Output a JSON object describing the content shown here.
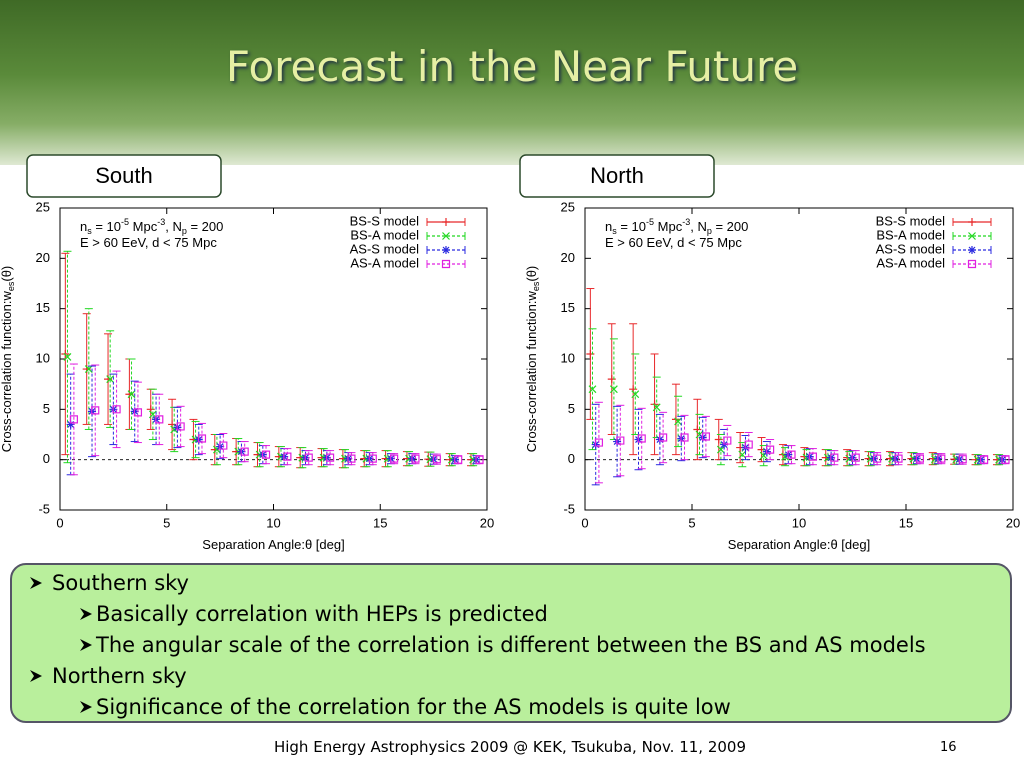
{
  "title": "Forecast in the Near Future",
  "footer": "High Energy Astrophysics 2009 @ KEK, Tsukuba, Nov. 11, 2009",
  "page_number": "16",
  "bullets": [
    {
      "text": "Southern sky",
      "level": 0
    },
    {
      "text": "Basically correlation with HEPs is predicted",
      "level": 1
    },
    {
      "text": "The angular scale of the correlation is different between the BS and AS models",
      "level": 1
    },
    {
      "text": "Northern sky",
      "level": 0
    },
    {
      "text": "Significance of the correlation for the AS models is quite low",
      "level": 1
    }
  ],
  "chart_data": [
    {
      "type": "errorbar",
      "title": "South",
      "xlabel": [
        {
          "text": "Separation Angle:"
        },
        {
          "text": "θ"
        },
        {
          "text": " [deg]"
        }
      ],
      "ylabel": [
        {
          "text": "Cross-correlation function:w"
        },
        {
          "sub": "es"
        },
        {
          "text": "(θ)"
        }
      ],
      "annotation": [
        [
          {
            "text": "n"
          },
          {
            "sub": "s"
          },
          {
            "text": " = 10"
          },
          {
            "sup": "-5"
          },
          {
            "text": " Mpc"
          },
          {
            "sup": "-3"
          },
          {
            "text": ", N"
          },
          {
            "sub": "p"
          },
          {
            "text": " = 200"
          }
        ],
        [
          {
            "text": "E > 60 EeV, d < 75 Mpc"
          }
        ]
      ],
      "xlim": [
        0,
        20
      ],
      "ylim": [
        -5,
        25
      ],
      "xticks": [
        0,
        5,
        10,
        15,
        20
      ],
      "yticks": [
        -5,
        0,
        5,
        10,
        15,
        20,
        25
      ],
      "legend": "upper right",
      "series": [
        {
          "name": "BS-S model",
          "color": "#e8282a",
          "marker": "plus",
          "dashed": false,
          "x": [
            0.25,
            1.25,
            2.25,
            3.25,
            4.25,
            5.25,
            6.25,
            7.25,
            8.25,
            9.25,
            10.25,
            11.25,
            12.25,
            13.25,
            14.25,
            15.25,
            16.25,
            17.25,
            18.25,
            19.25
          ],
          "values": [
            10.5,
            9,
            8,
            6.5,
            5,
            3.5,
            2,
            1,
            0.8,
            0.5,
            0.3,
            0.2,
            0.2,
            0.1,
            0.1,
            0.1,
            0.1,
            0.05,
            0,
            0
          ],
          "errors": [
            10,
            5.5,
            4.5,
            3.5,
            2,
            2.5,
            2,
            1.5,
            1.3,
            1.2,
            1,
            1,
            0.9,
            0.9,
            0.8,
            0.8,
            0.7,
            0.7,
            0.6,
            0.6
          ]
        },
        {
          "name": "BS-A model",
          "color": "#22d822",
          "marker": "cross",
          "dashed": true,
          "x": [
            0.35,
            1.35,
            2.35,
            3.35,
            4.35,
            5.35,
            6.35,
            7.35,
            8.35,
            9.35,
            10.35,
            11.35,
            12.35,
            13.35,
            14.35,
            15.35,
            16.35,
            17.35,
            18.35,
            19.35
          ],
          "values": [
            10.2,
            9,
            8,
            6.5,
            4.5,
            3,
            2,
            1,
            0.8,
            0.5,
            0.3,
            0.2,
            0.2,
            0.1,
            0.1,
            0.1,
            0.1,
            0.05,
            0,
            0
          ],
          "errors": [
            10.5,
            6,
            4.8,
            3.5,
            2.5,
            2.2,
            1.8,
            1.5,
            1.3,
            1.2,
            1,
            1,
            0.9,
            0.9,
            0.8,
            0.8,
            0.7,
            0.7,
            0.6,
            0.6
          ]
        },
        {
          "name": "AS-S model",
          "color": "#2a2ae0",
          "marker": "star",
          "dashed": true,
          "x": [
            0.5,
            1.5,
            2.5,
            3.5,
            4.5,
            5.5,
            6.5,
            7.5,
            8.5,
            9.5,
            10.5,
            11.5,
            12.5,
            13.5,
            14.5,
            15.5,
            16.5,
            17.5,
            18.5,
            19.5
          ],
          "values": [
            3.5,
            4.8,
            5,
            4.8,
            4,
            3.2,
            2,
            1.3,
            0.8,
            0.5,
            0.3,
            0.2,
            0.2,
            0.1,
            0.1,
            0.1,
            0.1,
            0.05,
            0,
            0
          ],
          "errors": [
            5,
            4.5,
            3.5,
            3,
            2.5,
            2,
            1.5,
            1.2,
            1,
            0.9,
            0.8,
            0.7,
            0.7,
            0.6,
            0.6,
            0.5,
            0.5,
            0.5,
            0.4,
            0.4
          ]
        },
        {
          "name": "AS-A model",
          "color": "#e020e0",
          "marker": "square",
          "dashed": true,
          "x": [
            0.65,
            1.65,
            2.65,
            3.65,
            4.65,
            5.65,
            6.65,
            7.65,
            8.65,
            9.65,
            10.65,
            11.65,
            12.65,
            13.65,
            14.65,
            15.65,
            16.65,
            17.65,
            18.65,
            19.65
          ],
          "values": [
            4,
            4.9,
            5,
            4.7,
            4,
            3.3,
            2.1,
            1.4,
            0.8,
            0.5,
            0.3,
            0.2,
            0.2,
            0.1,
            0.1,
            0.1,
            0.1,
            0.05,
            0,
            0
          ],
          "errors": [
            5.5,
            4.5,
            3.8,
            3,
            2.5,
            2,
            1.5,
            1.2,
            1,
            0.9,
            0.8,
            0.7,
            0.7,
            0.6,
            0.6,
            0.5,
            0.5,
            0.5,
            0.4,
            0.4
          ]
        }
      ]
    },
    {
      "type": "errorbar",
      "title": "North",
      "xlabel": [
        {
          "text": "Separation Angle:"
        },
        {
          "text": "θ"
        },
        {
          "text": " [deg]"
        }
      ],
      "ylabel": [
        {
          "text": "Cross-correlation function:w"
        },
        {
          "sub": "es"
        },
        {
          "text": "(θ)"
        }
      ],
      "annotation": [
        [
          {
            "text": "n"
          },
          {
            "sub": "s"
          },
          {
            "text": " = 10"
          },
          {
            "sup": "-5"
          },
          {
            "text": " Mpc"
          },
          {
            "sup": "-3"
          },
          {
            "text": ", N"
          },
          {
            "sub": "p"
          },
          {
            "text": " = 200"
          }
        ],
        [
          {
            "text": "E > 60 EeV, d < 75 Mpc"
          }
        ]
      ],
      "xlim": [
        0,
        20
      ],
      "ylim": [
        -5,
        25
      ],
      "xticks": [
        0,
        5,
        10,
        15,
        20
      ],
      "yticks": [
        -5,
        0,
        5,
        10,
        15,
        20,
        25
      ],
      "legend": "upper right",
      "series": [
        {
          "name": "BS-S model",
          "color": "#e8282a",
          "marker": "plus",
          "dashed": false,
          "x": [
            0.25,
            1.25,
            2.25,
            3.25,
            4.25,
            5.25,
            6.25,
            7.25,
            8.25,
            9.25,
            10.25,
            11.25,
            12.25,
            13.25,
            14.25,
            15.25,
            16.25,
            17.25,
            18.25,
            19.25
          ],
          "values": [
            10.5,
            8,
            7,
            5.5,
            4,
            3,
            2,
            1.2,
            1,
            0.5,
            0.3,
            0.2,
            0.2,
            0.1,
            0.1,
            0.1,
            0.1,
            0.05,
            0,
            0
          ],
          "errors": [
            6.5,
            5.5,
            6.5,
            5,
            3.5,
            3,
            2,
            1.5,
            1.2,
            1,
            0.9,
            0.8,
            0.8,
            0.7,
            0.7,
            0.6,
            0.6,
            0.5,
            0.5,
            0.5
          ]
        },
        {
          "name": "BS-A model",
          "color": "#22d822",
          "marker": "cross",
          "dashed": true,
          "x": [
            0.35,
            1.35,
            2.35,
            3.35,
            4.35,
            5.35,
            6.35,
            7.35,
            8.35,
            9.35,
            10.35,
            11.35,
            12.35,
            13.35,
            14.35,
            15.35,
            16.35,
            17.35,
            18.35,
            19.35
          ],
          "values": [
            7,
            7,
            6.5,
            5.2,
            3.8,
            2.5,
            1,
            0.5,
            0.4,
            0.3,
            0.2,
            0.2,
            0.1,
            0.1,
            0.1,
            0.1,
            0.05,
            0.05,
            0,
            0
          ],
          "errors": [
            6,
            5,
            4,
            3,
            2.5,
            2,
            1.5,
            1.2,
            1,
            0.9,
            0.8,
            0.8,
            0.7,
            0.7,
            0.6,
            0.6,
            0.5,
            0.5,
            0.5,
            0.5
          ]
        },
        {
          "name": "AS-S model",
          "color": "#2a2ae0",
          "marker": "star",
          "dashed": true,
          "x": [
            0.5,
            1.5,
            2.5,
            3.5,
            4.5,
            5.5,
            6.5,
            7.5,
            8.5,
            9.5,
            10.5,
            11.5,
            12.5,
            13.5,
            14.5,
            15.5,
            16.5,
            17.5,
            18.5,
            19.5
          ],
          "values": [
            1.5,
            1.8,
            2,
            2,
            2.1,
            2.2,
            1.5,
            1.2,
            0.8,
            0.5,
            0.3,
            0.2,
            0.2,
            0.1,
            0.1,
            0.1,
            0.1,
            0.05,
            0,
            0
          ],
          "errors": [
            4,
            3.5,
            3,
            2.5,
            2.2,
            2,
            1.5,
            1.2,
            1,
            0.9,
            0.8,
            0.7,
            0.7,
            0.6,
            0.6,
            0.5,
            0.5,
            0.5,
            0.4,
            0.4
          ]
        },
        {
          "name": "AS-A model",
          "color": "#e020e0",
          "marker": "square",
          "dashed": true,
          "x": [
            0.65,
            1.65,
            2.65,
            3.65,
            4.65,
            5.65,
            6.65,
            7.65,
            8.65,
            9.65,
            10.65,
            11.65,
            12.65,
            13.65,
            14.65,
            15.65,
            16.65,
            17.65,
            18.65,
            19.65
          ],
          "values": [
            1.7,
            1.9,
            2.1,
            2.2,
            2.2,
            2.3,
            1.9,
            1.5,
            1,
            0.5,
            0.3,
            0.2,
            0.2,
            0.1,
            0.1,
            0.1,
            0.1,
            0.05,
            0,
            0
          ],
          "errors": [
            4,
            3.5,
            3,
            2.5,
            2.2,
            2,
            1.5,
            1.2,
            1,
            0.9,
            0.8,
            0.7,
            0.7,
            0.6,
            0.6,
            0.5,
            0.5,
            0.5,
            0.4,
            0.4
          ]
        }
      ]
    }
  ]
}
